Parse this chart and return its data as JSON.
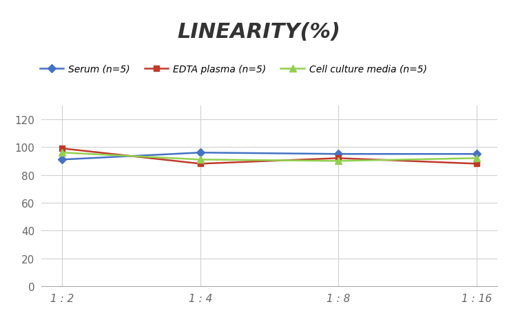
{
  "title": "LINEARITY(%)",
  "x_labels": [
    "1 : 2",
    "1 : 4",
    "1 : 8",
    "1 : 16"
  ],
  "x_positions": [
    0,
    1,
    2,
    3
  ],
  "series": [
    {
      "label": "Serum (n=5)",
      "values": [
        91,
        96,
        95,
        95
      ],
      "color": "#4472C4",
      "marker": "D",
      "marker_size": 6,
      "linewidth": 1.8
    },
    {
      "label": "EDTA plasma (n=5)",
      "values": [
        99,
        88,
        92,
        88
      ],
      "color": "#C0392B",
      "marker": "s",
      "marker_size": 6,
      "linewidth": 1.8
    },
    {
      "label": "Cell culture media (n=5)",
      "values": [
        96,
        91,
        90,
        92
      ],
      "color": "#92D050",
      "marker": "^",
      "marker_size": 7,
      "linewidth": 1.8
    }
  ],
  "ylim": [
    0,
    130
  ],
  "yticks": [
    0,
    20,
    40,
    60,
    80,
    100,
    120
  ],
  "background_color": "#ffffff",
  "grid_color": "#d0d0d0",
  "title_fontsize": 22,
  "legend_fontsize": 10,
  "tick_fontsize": 11
}
